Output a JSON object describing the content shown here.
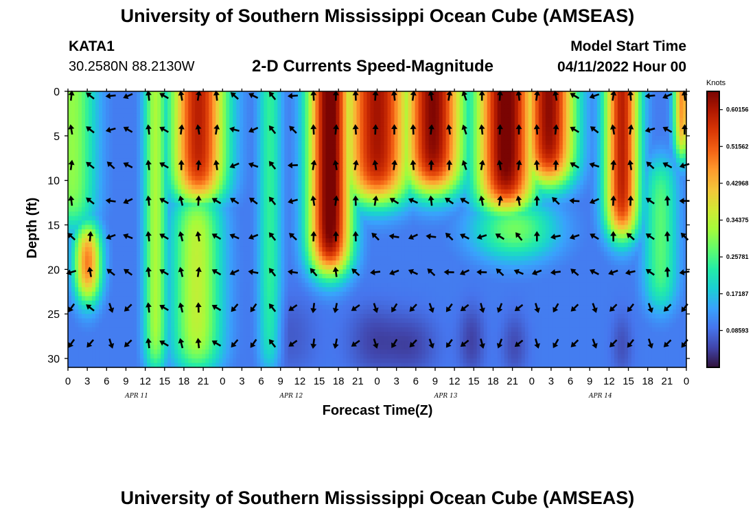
{
  "header": {
    "title": "University of Southern Mississippi Ocean Cube (AMSEAS)",
    "station": "KATA1",
    "coords": "30.2580N  88.2130W",
    "subtitle": "2-D Currents Speed-Magnitude",
    "model_label": "Model Start Time",
    "model_time": "04/11/2022 Hour 00"
  },
  "footer": {
    "title_repeat": "University of Southern Mississippi Ocean Cube (AMSEAS)"
  },
  "colors": {
    "scale": [
      "#30123b",
      "#4145ab",
      "#4675ed",
      "#39a2fc",
      "#1bcfd4",
      "#24eca6",
      "#61fc6c",
      "#a4fc3b",
      "#d1e834",
      "#f3c63a",
      "#fe9b2d",
      "#f36315",
      "#d93806",
      "#b11901",
      "#7a0402"
    ]
  },
  "chart_data": {
    "type": "heatmap",
    "title": "2-D Currents Speed-Magnitude",
    "xlabel": "Forecast Time(Z)",
    "ylabel": "Depth (ft)",
    "xlim": [
      0,
      72
    ],
    "ylim": [
      0,
      31
    ],
    "x_tick_labels": [
      "0",
      "3",
      "6",
      "9",
      "12",
      "15",
      "18",
      "21",
      "0",
      "3",
      "6",
      "9",
      "12",
      "15",
      "18",
      "21",
      "0",
      "3",
      "6",
      "9",
      "12",
      "15",
      "18",
      "21",
      "0",
      "3",
      "6",
      "9",
      "12",
      "15",
      "18",
      "21",
      "0"
    ],
    "y_ticks": [
      0,
      5,
      10,
      15,
      20,
      25,
      30
    ],
    "date_labels": [
      {
        "label": "APR 11",
        "hour": 8
      },
      {
        "label": "APR 12",
        "hour": 26
      },
      {
        "label": "APR 13",
        "hour": 44
      },
      {
        "label": "APR 14",
        "hour": 62
      }
    ],
    "colorbar": {
      "title": "Knots",
      "min": 0,
      "max": 0.6443,
      "ticks": [
        "0.08593",
        "0.17187",
        "0.25781",
        "0.34375",
        "0.42968",
        "0.51562",
        "0.60156"
      ],
      "tick_values": [
        0.08593,
        0.17187,
        0.25781,
        0.34375,
        0.42968,
        0.51562,
        0.60156
      ]
    },
    "speed_events": [
      {
        "hour": 0.5,
        "width": 2.8,
        "top": 0,
        "bottom": 15,
        "peak": 0.22
      },
      {
        "hour": 2.3,
        "width": 1.6,
        "top": 15.5,
        "bottom": 23,
        "peak": 0.43
      },
      {
        "hour": 10.2,
        "width": 1.4,
        "top": 0,
        "bottom": 31,
        "peak": 0.24
      },
      {
        "hour": 15.2,
        "width": 3.2,
        "top": 0,
        "bottom": 12,
        "peak": 0.5
      },
      {
        "hour": 15,
        "width": 3.0,
        "top": 12,
        "bottom": 31,
        "peak": 0.26
      },
      {
        "hour": 23.5,
        "width": 1.4,
        "top": 0,
        "bottom": 31,
        "peak": 0.15
      },
      {
        "hour": 30.5,
        "width": 2.5,
        "top": 0,
        "bottom": 20,
        "peak": 0.58
      },
      {
        "hour": 36,
        "width": 4,
        "top": 0,
        "bottom": 12,
        "peak": 0.52
      },
      {
        "hour": 42.5,
        "width": 3.5,
        "top": 0,
        "bottom": 11,
        "peak": 0.55
      },
      {
        "hour": 51,
        "width": 3.5,
        "top": 0,
        "bottom": 13,
        "peak": 0.57
      },
      {
        "hour": 56,
        "width": 3.0,
        "top": 0,
        "bottom": 10,
        "peak": 0.54
      },
      {
        "hour": 52,
        "width": 5,
        "top": 13,
        "bottom": 18,
        "peak": 0.25
      },
      {
        "hour": 64.5,
        "width": 2.0,
        "top": 0,
        "bottom": 16,
        "peak": 0.5
      },
      {
        "hour": 71.5,
        "width": 1.0,
        "top": 0,
        "bottom": 7,
        "peak": 0.38
      },
      {
        "hour": 69,
        "width": 2.0,
        "top": 8,
        "bottom": 24,
        "peak": 0.18
      }
    ],
    "calm_events": [
      {
        "hour": 35.5,
        "width": 3,
        "top": 25,
        "bottom": 31,
        "strength": 0.5
      },
      {
        "hour": 40,
        "width": 3,
        "top": 26,
        "bottom": 31,
        "strength": 0.55
      },
      {
        "hour": 47,
        "width": 1.5,
        "top": 25,
        "bottom": 31,
        "strength": 0.55
      },
      {
        "hour": 52,
        "width": 1.5,
        "top": 26,
        "bottom": 31,
        "strength": 0.5
      },
      {
        "hour": 64.5,
        "width": 1.2,
        "top": 26,
        "bottom": 31,
        "strength": 0.45
      },
      {
        "hour": 26,
        "width": 3,
        "top": 24,
        "bottom": 31,
        "strength": 0.3
      }
    ],
    "arrow_times": [
      0.4,
      2.6,
      5,
      7,
      9.4,
      11.2,
      13.2,
      15.2,
      17.3,
      19.4,
      21.6,
      23.8,
      26.2,
      28.6,
      31.2,
      33.5,
      35.8,
      38,
      40.2,
      42.3,
      44.4,
      46.2,
      48.2,
      50.3,
      52.5,
      54.6,
      56.8,
      59,
      61.3,
      63.5,
      65.5,
      67.8,
      69.8,
      71.8
    ],
    "arrow_depths": [
      0.2,
      4,
      8,
      12,
      16,
      20,
      24,
      28
    ],
    "arrow_direction_rule": "flood (north) during high-speed bands, ebb (west/south-west) during slack bands"
  }
}
